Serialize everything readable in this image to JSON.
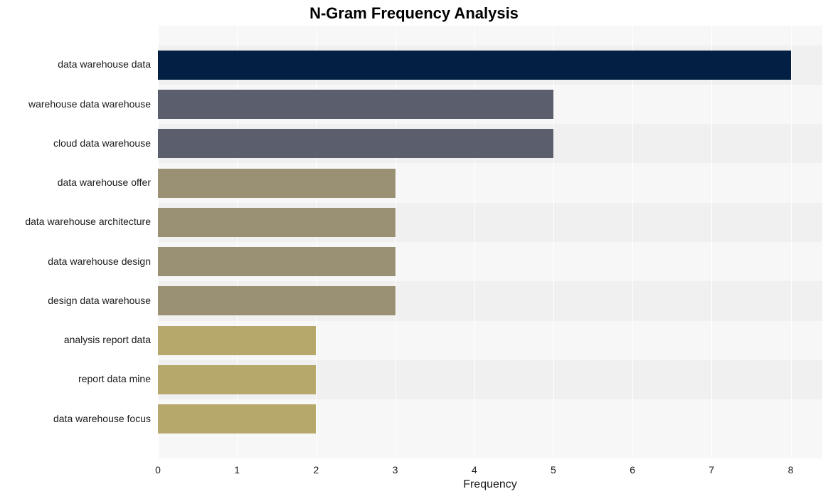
{
  "chart": {
    "type": "bar_horizontal",
    "title": "N-Gram Frequency Analysis",
    "title_fontsize": 22,
    "title_fontweight": "bold",
    "background_color": "#ffffff",
    "plot_background_color": "#f7f7f7",
    "grid_band_color": "#f0f0f0",
    "grid_line_color": "#ffffff",
    "text_color": "#1a1a1a",
    "xlabel": "Frequency",
    "xlabel_fontsize": 16,
    "ylabel_fontsize": 14,
    "tick_fontsize": 14,
    "xlim": [
      0,
      8.4
    ],
    "xtick_step": 1,
    "xticks": [
      "0",
      "1",
      "2",
      "3",
      "4",
      "5",
      "6",
      "7",
      "8"
    ],
    "bar_height_ratio": 0.74,
    "categories": [
      "data warehouse data",
      "warehouse data warehouse",
      "cloud data warehouse",
      "data warehouse offer",
      "data warehouse architecture",
      "data warehouse design",
      "design data warehouse",
      "analysis report data",
      "report data mine",
      "data warehouse focus"
    ],
    "values": [
      8,
      5,
      5,
      3,
      3,
      3,
      3,
      2,
      2,
      2
    ],
    "bar_colors": [
      "#031f44",
      "#5a5e6d",
      "#5a5e6d",
      "#9a9174",
      "#9a9174",
      "#9a9174",
      "#9a9174",
      "#b6a86a",
      "#b6a86a",
      "#b6a86a"
    ]
  }
}
